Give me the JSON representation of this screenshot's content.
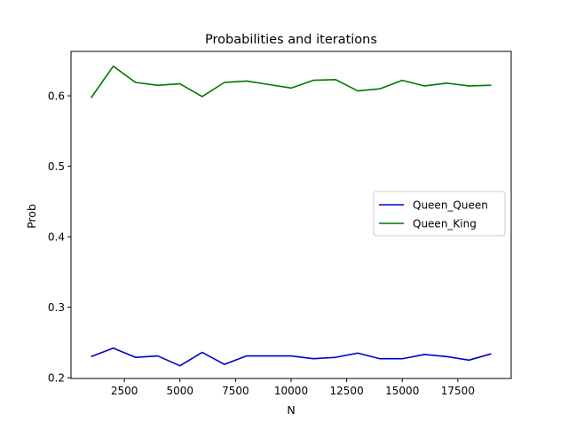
{
  "chart_data": {
    "type": "line",
    "title": "Probabilities and iterations",
    "xlabel": "N",
    "ylabel": "Prob",
    "xlim": [
      100,
      19900
    ],
    "ylim": [
      0.199,
      0.663
    ],
    "xticks": [
      2500,
      5000,
      7500,
      10000,
      12500,
      15000,
      17500
    ],
    "xtick_labels": [
      "2500",
      "5000",
      "7500",
      "10000",
      "12500",
      "15000",
      "17500"
    ],
    "yticks": [
      0.2,
      0.3,
      0.4,
      0.5,
      0.6
    ],
    "ytick_labels": [
      "0.2",
      "0.3",
      "0.4",
      "0.5",
      "0.6"
    ],
    "grid": false,
    "legend_position": "center-right",
    "x": [
      1000,
      2000,
      3000,
      4000,
      5000,
      6000,
      7000,
      8000,
      9000,
      10000,
      11000,
      12000,
      13000,
      14000,
      15000,
      16000,
      17000,
      18000,
      19000
    ],
    "series": [
      {
        "name": "Queen_Queen",
        "color": "#0000cc",
        "values": [
          0.23,
          0.242,
          0.229,
          0.231,
          0.217,
          0.236,
          0.219,
          0.231,
          0.231,
          0.231,
          0.227,
          0.229,
          0.235,
          0.227,
          0.227,
          0.233,
          0.23,
          0.225,
          0.234
        ]
      },
      {
        "name": "Queen_King",
        "color": "#007700",
        "values": [
          0.597,
          0.642,
          0.619,
          0.615,
          0.617,
          0.599,
          0.619,
          0.621,
          0.616,
          0.611,
          0.622,
          0.623,
          0.607,
          0.61,
          0.622,
          0.614,
          0.618,
          0.614,
          0.615
        ]
      }
    ]
  }
}
